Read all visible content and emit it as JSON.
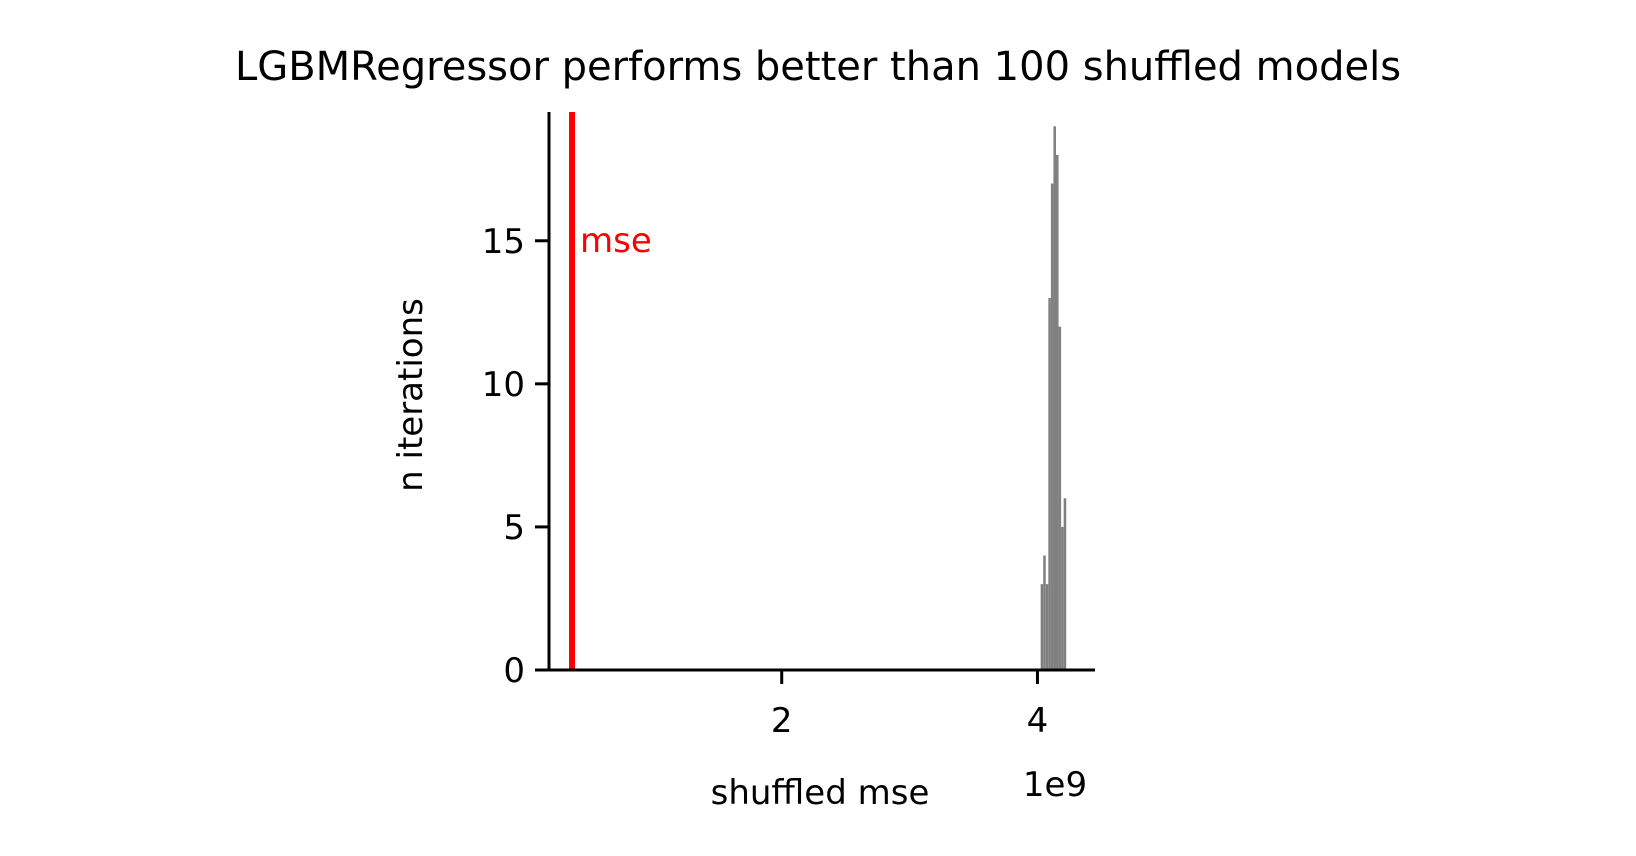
{
  "chart_data": {
    "type": "histogram",
    "title": "LGBMRegressor performs better than 100 shuffled models",
    "xlabel": "shuffled mse",
    "ylabel": "n iterations",
    "x_offset_label": "1e9",
    "x_scale": 1000000000,
    "xlim": [
      0.18,
      4.45
    ],
    "ylim": [
      0,
      19.5
    ],
    "x_ticks": [
      2,
      4
    ],
    "x_tick_labels": [
      "2",
      "4"
    ],
    "y_ticks": [
      0,
      5,
      10,
      15
    ],
    "y_tick_labels": [
      "0",
      "5",
      "10",
      "15"
    ],
    "grid": false,
    "bins": [
      {
        "x0": 4.025,
        "x1": 4.045,
        "count": 3
      },
      {
        "x0": 4.045,
        "x1": 4.065,
        "count": 4
      },
      {
        "x0": 4.065,
        "x1": 4.085,
        "count": 3
      },
      {
        "x0": 4.085,
        "x1": 4.105,
        "count": 13
      },
      {
        "x0": 4.105,
        "x1": 4.125,
        "count": 17
      },
      {
        "x0": 4.125,
        "x1": 4.145,
        "count": 19
      },
      {
        "x0": 4.145,
        "x1": 4.165,
        "count": 18
      },
      {
        "x0": 4.165,
        "x1": 4.185,
        "count": 12
      },
      {
        "x0": 4.185,
        "x1": 4.205,
        "count": 5
      },
      {
        "x0": 4.205,
        "x1": 4.225,
        "count": 6
      }
    ],
    "bar_color": "#808080",
    "reference_line": {
      "label": "mse",
      "x": 0.36,
      "color": "#ff0000"
    }
  }
}
